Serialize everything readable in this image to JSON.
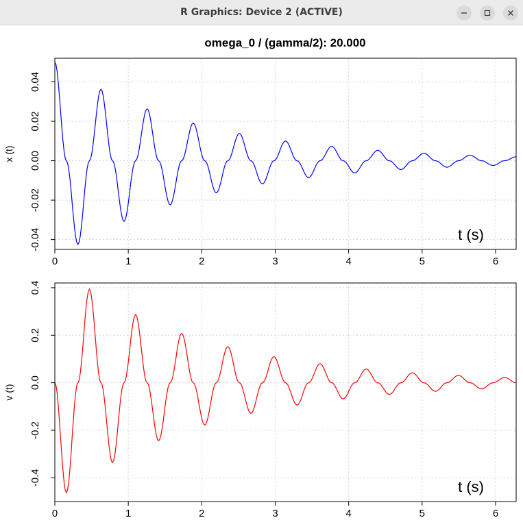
{
  "window": {
    "title": "R Graphics: Device 2 (ACTIVE)",
    "buttons": [
      "minimize-icon",
      "maximize-icon",
      "close-icon"
    ]
  },
  "chart_data": [
    {
      "type": "line",
      "title": "omega_0 / (gamma/2): 20.000",
      "xlabel": "",
      "ylabel": "x (t)",
      "annotation": "t (s)",
      "color": "#0000ff",
      "grid": true,
      "xlim": [
        0,
        6.28
      ],
      "ylim": [
        -0.045,
        0.052
      ],
      "x_ticks": [
        0,
        1,
        2,
        3,
        4,
        5,
        6
      ],
      "x_tick_labels": [
        "0",
        "1",
        "2",
        "3",
        "4",
        "5",
        "6"
      ],
      "y_ticks": [
        -0.04,
        -0.02,
        0.0,
        0.02,
        0.04
      ],
      "y_tick_labels": [
        "-0.04",
        "-0.02",
        "0.00",
        "0.02",
        "0.04"
      ],
      "x": [
        0,
        0.157,
        0.314,
        0.471,
        0.628,
        0.785,
        0.942,
        1.099,
        1.256,
        1.413,
        1.57,
        1.727,
        1.884,
        2.041,
        2.198,
        2.355,
        2.512,
        2.669,
        2.826,
        2.983,
        3.14,
        3.297,
        3.454,
        3.611,
        3.768,
        3.925,
        4.082,
        4.239,
        4.396,
        4.553,
        4.71,
        4.867,
        5.024,
        5.181,
        5.338,
        5.495,
        5.652,
        5.809,
        5.966,
        6.123,
        6.28
      ],
      "y": [
        0.05,
        0.0,
        -0.0425,
        0.0,
        0.0362,
        0.0,
        -0.0308,
        0.0,
        0.0263,
        0.0,
        -0.0224,
        0.0,
        0.0191,
        0.0,
        -0.0163,
        0.0,
        0.0138,
        0.0,
        -0.0118,
        0.0,
        0.01,
        0.0,
        -0.0086,
        0.0,
        0.0073,
        0.0,
        -0.0062,
        0.0,
        0.0053,
        0.0,
        -0.0045,
        0.0,
        0.0038,
        0.0,
        -0.0033,
        0.0,
        0.0028,
        0.0,
        -0.0024,
        0.0,
        0.002
      ]
    },
    {
      "type": "line",
      "title": "",
      "xlabel": "",
      "ylabel": "v (t)",
      "annotation": "t (s)",
      "color": "#ff0000",
      "grid": true,
      "xlim": [
        0,
        6.28
      ],
      "ylim": [
        -0.5,
        0.42
      ],
      "x_ticks": [
        0,
        1,
        2,
        3,
        4,
        5,
        6
      ],
      "x_tick_labels": [
        "0",
        "1",
        "2",
        "3",
        "4",
        "5",
        "6"
      ],
      "y_ticks": [
        -0.4,
        -0.2,
        0.0,
        0.2,
        0.4
      ],
      "y_tick_labels": [
        "-0.4",
        "-0.2",
        "0.0",
        "0.2",
        "0.4"
      ],
      "x": [
        0,
        0.157,
        0.314,
        0.471,
        0.628,
        0.785,
        0.942,
        1.099,
        1.256,
        1.413,
        1.57,
        1.727,
        1.884,
        2.041,
        2.198,
        2.355,
        2.512,
        2.669,
        2.826,
        2.983,
        3.14,
        3.297,
        3.454,
        3.611,
        3.768,
        3.925,
        4.082,
        4.239,
        4.396,
        4.553,
        4.71,
        4.867,
        5.024,
        5.181,
        5.338,
        5.495,
        5.652,
        5.809,
        5.966,
        6.123,
        6.28
      ],
      "y": [
        0.0,
        -0.463,
        0.0,
        0.394,
        0.0,
        -0.336,
        0.0,
        0.287,
        0.0,
        -0.244,
        0.0,
        0.208,
        0.0,
        -0.178,
        0.0,
        0.152,
        0.0,
        -0.129,
        0.0,
        0.11,
        0.0,
        -0.094,
        0.0,
        0.08,
        0.0,
        -0.068,
        0.0,
        0.058,
        0.0,
        -0.049,
        0.0,
        0.042,
        0.0,
        -0.036,
        0.0,
        0.031,
        0.0,
        -0.026,
        0.0,
        0.022,
        0.0
      ]
    }
  ]
}
